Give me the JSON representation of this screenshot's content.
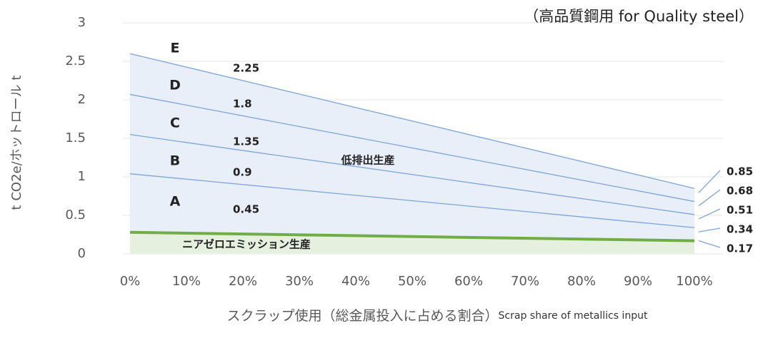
{
  "chart_data": {
    "type": "line",
    "title": "（高品質鋼用 for Quality steel）",
    "ylabel": "t CO2e/ホットロール t",
    "xlabel": [
      "スクラップ使用（総金属投入に占める割合）",
      "Scrap share of metallics input"
    ],
    "x": [
      0,
      100
    ],
    "xlim": [
      0,
      100
    ],
    "xticks": [
      {
        "value": 0,
        "label": "0%"
      },
      {
        "value": 10,
        "label": "10%"
      },
      {
        "value": 20,
        "label": "20%"
      },
      {
        "value": 30,
        "label": "30%"
      },
      {
        "value": 40,
        "label": "40%"
      },
      {
        "value": 50,
        "label": "50%"
      },
      {
        "value": 60,
        "label": "60%"
      },
      {
        "value": 70,
        "label": "70%"
      },
      {
        "value": 80,
        "label": "80%"
      },
      {
        "value": 90,
        "label": "90%"
      },
      {
        "value": 100,
        "label": "100%"
      }
    ],
    "ylim": [
      0,
      3
    ],
    "yticks": [
      0,
      0.5,
      1,
      1.5,
      2,
      2.5,
      3
    ],
    "series": [
      {
        "color": "#7ea6d8",
        "values": [
          2.6,
          0.85
        ]
      },
      {
        "color": "#7ea6d8",
        "values": [
          2.07,
          0.68
        ]
      },
      {
        "color": "#7ea6d8",
        "values": [
          1.55,
          0.51
        ]
      },
      {
        "color": "#7ea6d8",
        "values": [
          1.04,
          0.34
        ]
      },
      {
        "color": "#70ad47",
        "values": [
          0.28,
          0.17
        ]
      }
    ],
    "band_letters": [
      "E",
      "D",
      "C",
      "B",
      "A"
    ],
    "band_labels": [
      "2.25",
      "1.8",
      "1.35",
      "0.9",
      "0.45"
    ],
    "annotations": [
      "低排出生産",
      "ニアゼロエミッション生産"
    ],
    "area_colors": [
      "#e8eff8",
      "#e6f0de"
    ]
  }
}
